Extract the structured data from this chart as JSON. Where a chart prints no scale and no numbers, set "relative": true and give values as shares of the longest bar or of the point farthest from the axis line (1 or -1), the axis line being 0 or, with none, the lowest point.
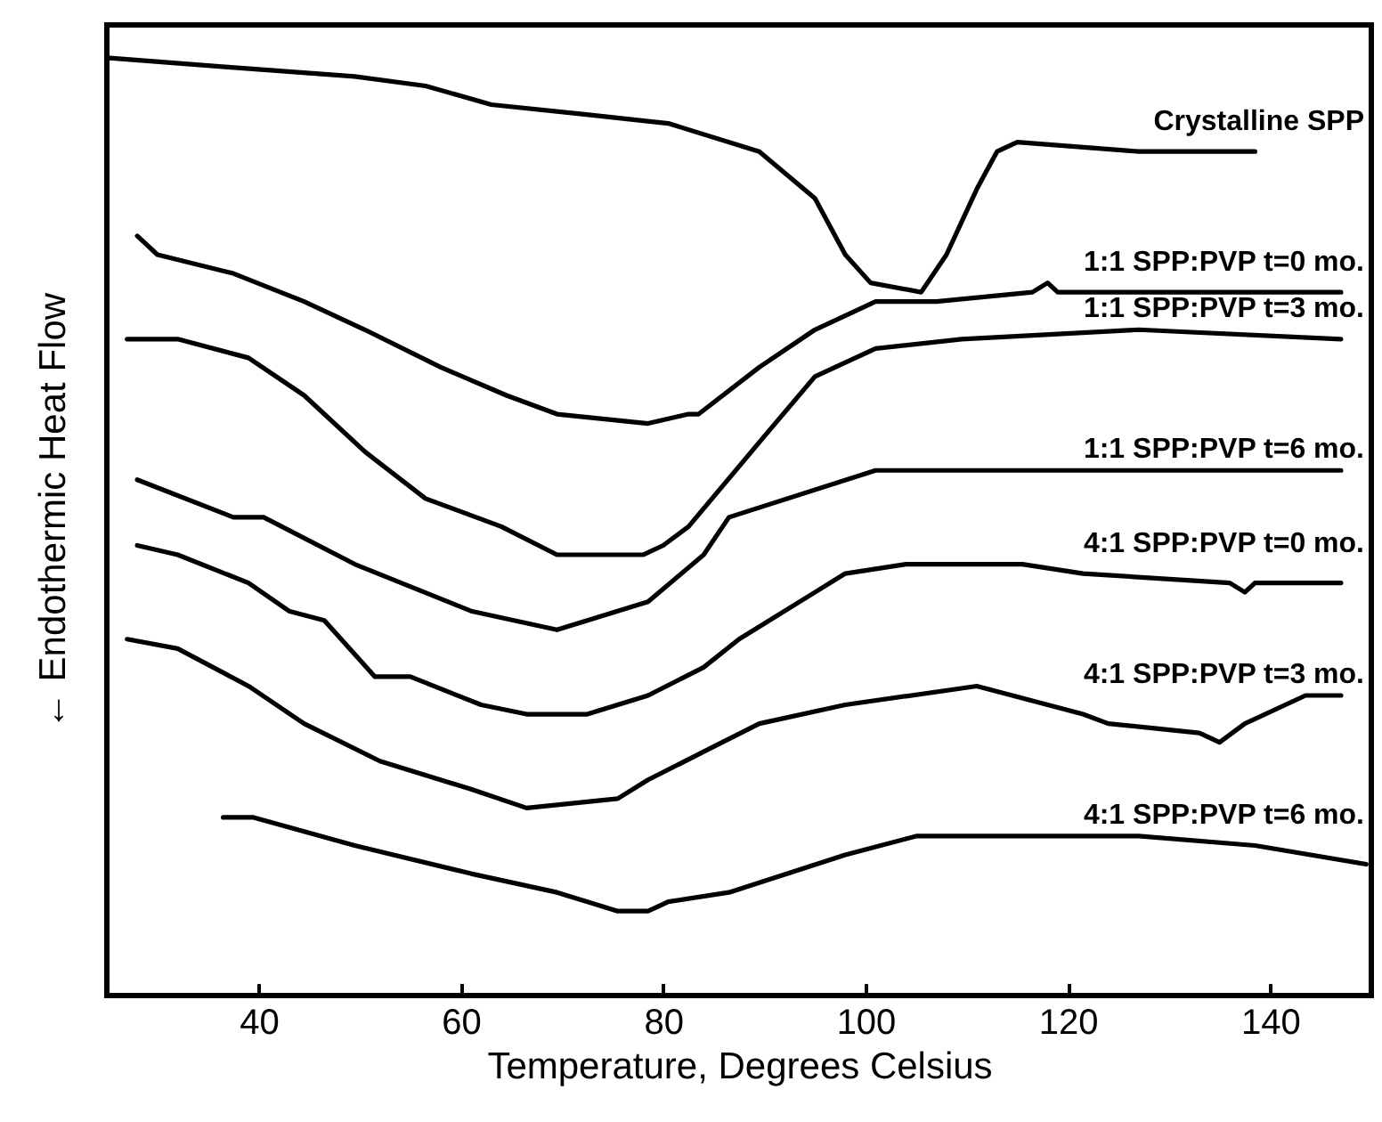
{
  "chart_data": {
    "type": "line",
    "relative": true,
    "xlabel": "Temperature, Degrees Celsius",
    "ylabel": "← Endothermic          Heat Flow",
    "xlim": [
      25,
      150
    ],
    "xticks": [
      40,
      60,
      80,
      100,
      120,
      140
    ],
    "tick_labels": "x",
    "grid": false,
    "marker": "none",
    "line_style": "solid",
    "series": [
      {
        "name": "Crystalline SPP",
        "color": "#000000",
        "x": [
          25,
          37,
          49.5,
          56.5,
          63,
          72,
          80.5,
          89.5,
          95,
          98,
          100.5,
          105.5,
          108,
          111,
          113,
          115,
          127,
          138.5
        ],
        "values": [
          1.0,
          0.99,
          0.98,
          0.97,
          0.95,
          0.94,
          0.93,
          0.9,
          0.85,
          0.79,
          0.76,
          0.75,
          0.79,
          0.86,
          0.9,
          0.91,
          0.9,
          0.9
        ]
      },
      {
        "name": "1:1 SPP:PVP t=0 mo.",
        "color": "#000000",
        "x": [
          28,
          30,
          37.5,
          44.5,
          50.5,
          58,
          64.5,
          69.5,
          78.5,
          82.5,
          83.5,
          89.5,
          95,
          101,
          107,
          116.5,
          118,
          119,
          147
        ],
        "values": [
          0.81,
          0.79,
          0.77,
          0.74,
          0.71,
          0.67,
          0.64,
          0.62,
          0.61,
          0.62,
          0.62,
          0.67,
          0.71,
          0.74,
          0.74,
          0.75,
          0.76,
          0.75,
          0.75
        ]
      },
      {
        "name": "1:1 SPP:PVP t=3 mo.",
        "color": "#000000",
        "x": [
          27,
          32,
          39,
          44.5,
          50.5,
          56.5,
          64,
          69.5,
          75.5,
          78,
          80,
          82.5,
          89.5,
          95,
          101,
          109.5,
          127,
          147
        ],
        "values": [
          0.7,
          0.7,
          0.68,
          0.64,
          0.58,
          0.53,
          0.5,
          0.47,
          0.47,
          0.47,
          0.48,
          0.5,
          0.59,
          0.66,
          0.69,
          0.7,
          0.71,
          0.7
        ]
      },
      {
        "name": "1:1 SPP:PVP t=6 mo.",
        "color": "#000000",
        "x": [
          28,
          37.5,
          40.5,
          49.5,
          61,
          69.5,
          72.5,
          78.5,
          84,
          86.5,
          101,
          109.5,
          147
        ],
        "values": [
          0.55,
          0.51,
          0.51,
          0.46,
          0.41,
          0.39,
          0.4,
          0.42,
          0.47,
          0.51,
          0.56,
          0.56,
          0.56
        ]
      },
      {
        "name": "4:1 SPP:PVP t=0 mo.",
        "color": "#000000",
        "x": [
          28,
          32,
          39,
          43,
          46.5,
          51.5,
          55,
          62,
          66.5,
          72.5,
          78.5,
          84,
          87.5,
          95,
          98,
          104,
          115.5,
          121.5,
          136,
          137.5,
          138.5,
          147
        ],
        "values": [
          0.48,
          0.47,
          0.44,
          0.41,
          0.4,
          0.34,
          0.34,
          0.31,
          0.3,
          0.3,
          0.32,
          0.35,
          0.38,
          0.43,
          0.45,
          0.46,
          0.46,
          0.45,
          0.44,
          0.43,
          0.44,
          0.44
        ]
      },
      {
        "name": "4:1 SPP:PVP t=3 mo.",
        "color": "#000000",
        "x": [
          27,
          32,
          39,
          44.5,
          52,
          61,
          66.5,
          75.5,
          78.5,
          84,
          89.5,
          98,
          111,
          121.5,
          124,
          133,
          135,
          137.5,
          143.5,
          147
        ],
        "values": [
          0.38,
          0.37,
          0.33,
          0.29,
          0.25,
          0.22,
          0.2,
          0.21,
          0.23,
          0.26,
          0.29,
          0.31,
          0.33,
          0.3,
          0.29,
          0.28,
          0.27,
          0.29,
          0.32,
          0.32
        ]
      },
      {
        "name": "4:1 SPP:PVP t=6 mo.",
        "color": "#000000",
        "x": [
          36.5,
          39.5,
          49.5,
          61,
          69.5,
          75.5,
          78.5,
          80.5,
          86.5,
          98,
          105,
          115.5,
          127,
          138.5,
          149.5
        ],
        "values": [
          0.19,
          0.19,
          0.16,
          0.13,
          0.11,
          0.09,
          0.09,
          0.1,
          0.11,
          0.15,
          0.17,
          0.17,
          0.17,
          0.16,
          0.14
        ]
      }
    ]
  }
}
